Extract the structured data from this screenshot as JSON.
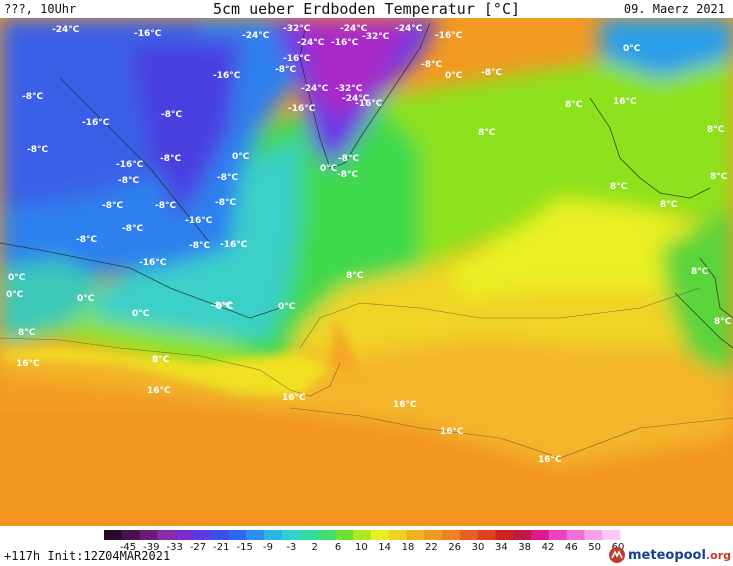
{
  "header": {
    "left": "???, 10Uhr",
    "title": "5cm ueber Erdboden Temperatur [°C]",
    "date": "09. Maerz 2021"
  },
  "footer": {
    "run_info": "+117h Init:12Z04MAR2021",
    "brand_main": "meteopool",
    "brand_tld": ".org"
  },
  "legend": {
    "ticks": [
      "-45",
      "-39",
      "-33",
      "-27",
      "-21",
      "-15",
      "-9",
      "-3",
      "2",
      "6",
      "10",
      "14",
      "18",
      "22",
      "26",
      "30",
      "34",
      "38",
      "42",
      "46",
      "50",
      "60"
    ],
    "colors": [
      "#2a0a2a",
      "#4a1050",
      "#6a1a7a",
      "#8a2aa8",
      "#7a2bd0",
      "#5a3ae8",
      "#3a4ee8",
      "#2a6af0",
      "#2a8ef0",
      "#2ab4e8",
      "#30d0d0",
      "#30dca0",
      "#40e070",
      "#70e030",
      "#b0e820",
      "#e8f020",
      "#f0d020",
      "#f0b020",
      "#f09820",
      "#f08020",
      "#e86020",
      "#e04020",
      "#d02020",
      "#c01840",
      "#e01890",
      "#f040c0",
      "#f070d8",
      "#f8a0e8",
      "#fcc8f4"
    ]
  },
  "temp_labels": [
    {
      "t": "-24°C"
    },
    {
      "t": "-16°C"
    },
    {
      "t": "-32°C"
    },
    {
      "t": "-24°C"
    },
    {
      "t": "-24°C"
    },
    {
      "t": "-24°C"
    },
    {
      "t": "-16°C"
    },
    {
      "t": "-24°C"
    },
    {
      "t": "-16°C"
    },
    {
      "t": "-32°C"
    },
    {
      "t": "-16°C"
    },
    {
      "t": "-8°C"
    },
    {
      "t": "-8°C"
    },
    {
      "t": "0°C"
    },
    {
      "t": "-8°C"
    },
    {
      "t": "0°C"
    },
    {
      "t": "-16°C"
    },
    {
      "t": "-24°C"
    },
    {
      "t": "-32°C"
    },
    {
      "t": "-24°C"
    },
    {
      "t": "-16°C"
    },
    {
      "t": "-16°C"
    },
    {
      "t": "16°C"
    },
    {
      "t": "-8°C"
    },
    {
      "t": "-16°C"
    },
    {
      "t": "-8°C"
    },
    {
      "t": "8°C"
    },
    {
      "t": "8°C"
    },
    {
      "t": "8°C"
    },
    {
      "t": "-8°C"
    },
    {
      "t": "-16°C"
    },
    {
      "t": "-8°C"
    },
    {
      "t": "-8°C"
    },
    {
      "t": "0°C"
    },
    {
      "t": "-8°C"
    },
    {
      "t": "-8°C"
    },
    {
      "t": "-8°C"
    },
    {
      "t": "-8°C"
    },
    {
      "t": "-16°C"
    },
    {
      "t": "-8°C"
    },
    {
      "t": "8°C"
    },
    {
      "t": "-8°C"
    },
    {
      "t": "-8°C"
    },
    {
      "t": "-8°C"
    },
    {
      "t": "-16°C"
    },
    {
      "t": "-16°C"
    },
    {
      "t": "8°C"
    },
    {
      "t": "-8°C"
    },
    {
      "t": "0°C"
    },
    {
      "t": "0°C"
    },
    {
      "t": "0°C"
    },
    {
      "t": "-8°C"
    },
    {
      "t": "8°C"
    },
    {
      "t": "8°C"
    },
    {
      "t": "0°C"
    },
    {
      "t": "0°C"
    },
    {
      "t": "0°C"
    },
    {
      "t": "0°C"
    },
    {
      "t": "8°C"
    },
    {
      "t": "8°C"
    },
    {
      "t": "16°C"
    },
    {
      "t": "8°C"
    },
    {
      "t": "8°C"
    },
    {
      "t": "16°C"
    },
    {
      "t": "16°C"
    },
    {
      "t": "16°C"
    },
    {
      "t": "16°C"
    },
    {
      "t": "16°C"
    }
  ]
}
